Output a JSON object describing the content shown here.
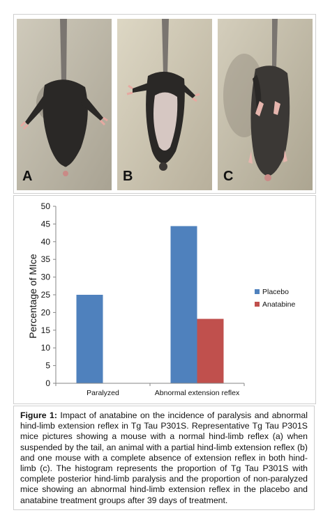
{
  "photos": {
    "panels": [
      {
        "label": "A",
        "icon": "mouse-photo-normal-reflex"
      },
      {
        "label": "B",
        "icon": "mouse-photo-partial-extension"
      },
      {
        "label": "C",
        "icon": "mouse-photo-no-extension"
      }
    ]
  },
  "chart_data": {
    "type": "bar",
    "categories": [
      "Paralyzed",
      "Abnormal extension reflex"
    ],
    "series": [
      {
        "name": "Placebo",
        "values": [
          25,
          44.4
        ],
        "color": "#4f81bd"
      },
      {
        "name": "Anatabine",
        "values": [
          0,
          18.2
        ],
        "color": "#c0504d"
      }
    ],
    "title": "",
    "xlabel": "",
    "ylabel": "Percentage of MIce",
    "ylim": [
      0,
      50
    ],
    "yticks": [
      0,
      5,
      10,
      15,
      20,
      25,
      30,
      35,
      40,
      45,
      50
    ],
    "grid": false,
    "legend": "right"
  },
  "caption": {
    "label": "Figure 1:",
    "text": " Impact of anatabine on the incidence of paralysis and abnormal hind-limb extension reflex in Tg Tau P301S. Representative Tg Tau P301S mice pictures showing a mouse with a normal hind-limb reflex (a) when suspended by the tail, an animal with a partial hind-limb extension reflex (b) and one mouse with a complete absence of extension reflex in both hind-limb (c). The histogram represents the proportion of Tg Tau P301S with complete posterior hind-limb paralysis and the proportion of non-paralyzed mice showing an abnormal hind-limb extension reflex in the placebo and anatabine treatment groups after 39 days of treatment."
  }
}
